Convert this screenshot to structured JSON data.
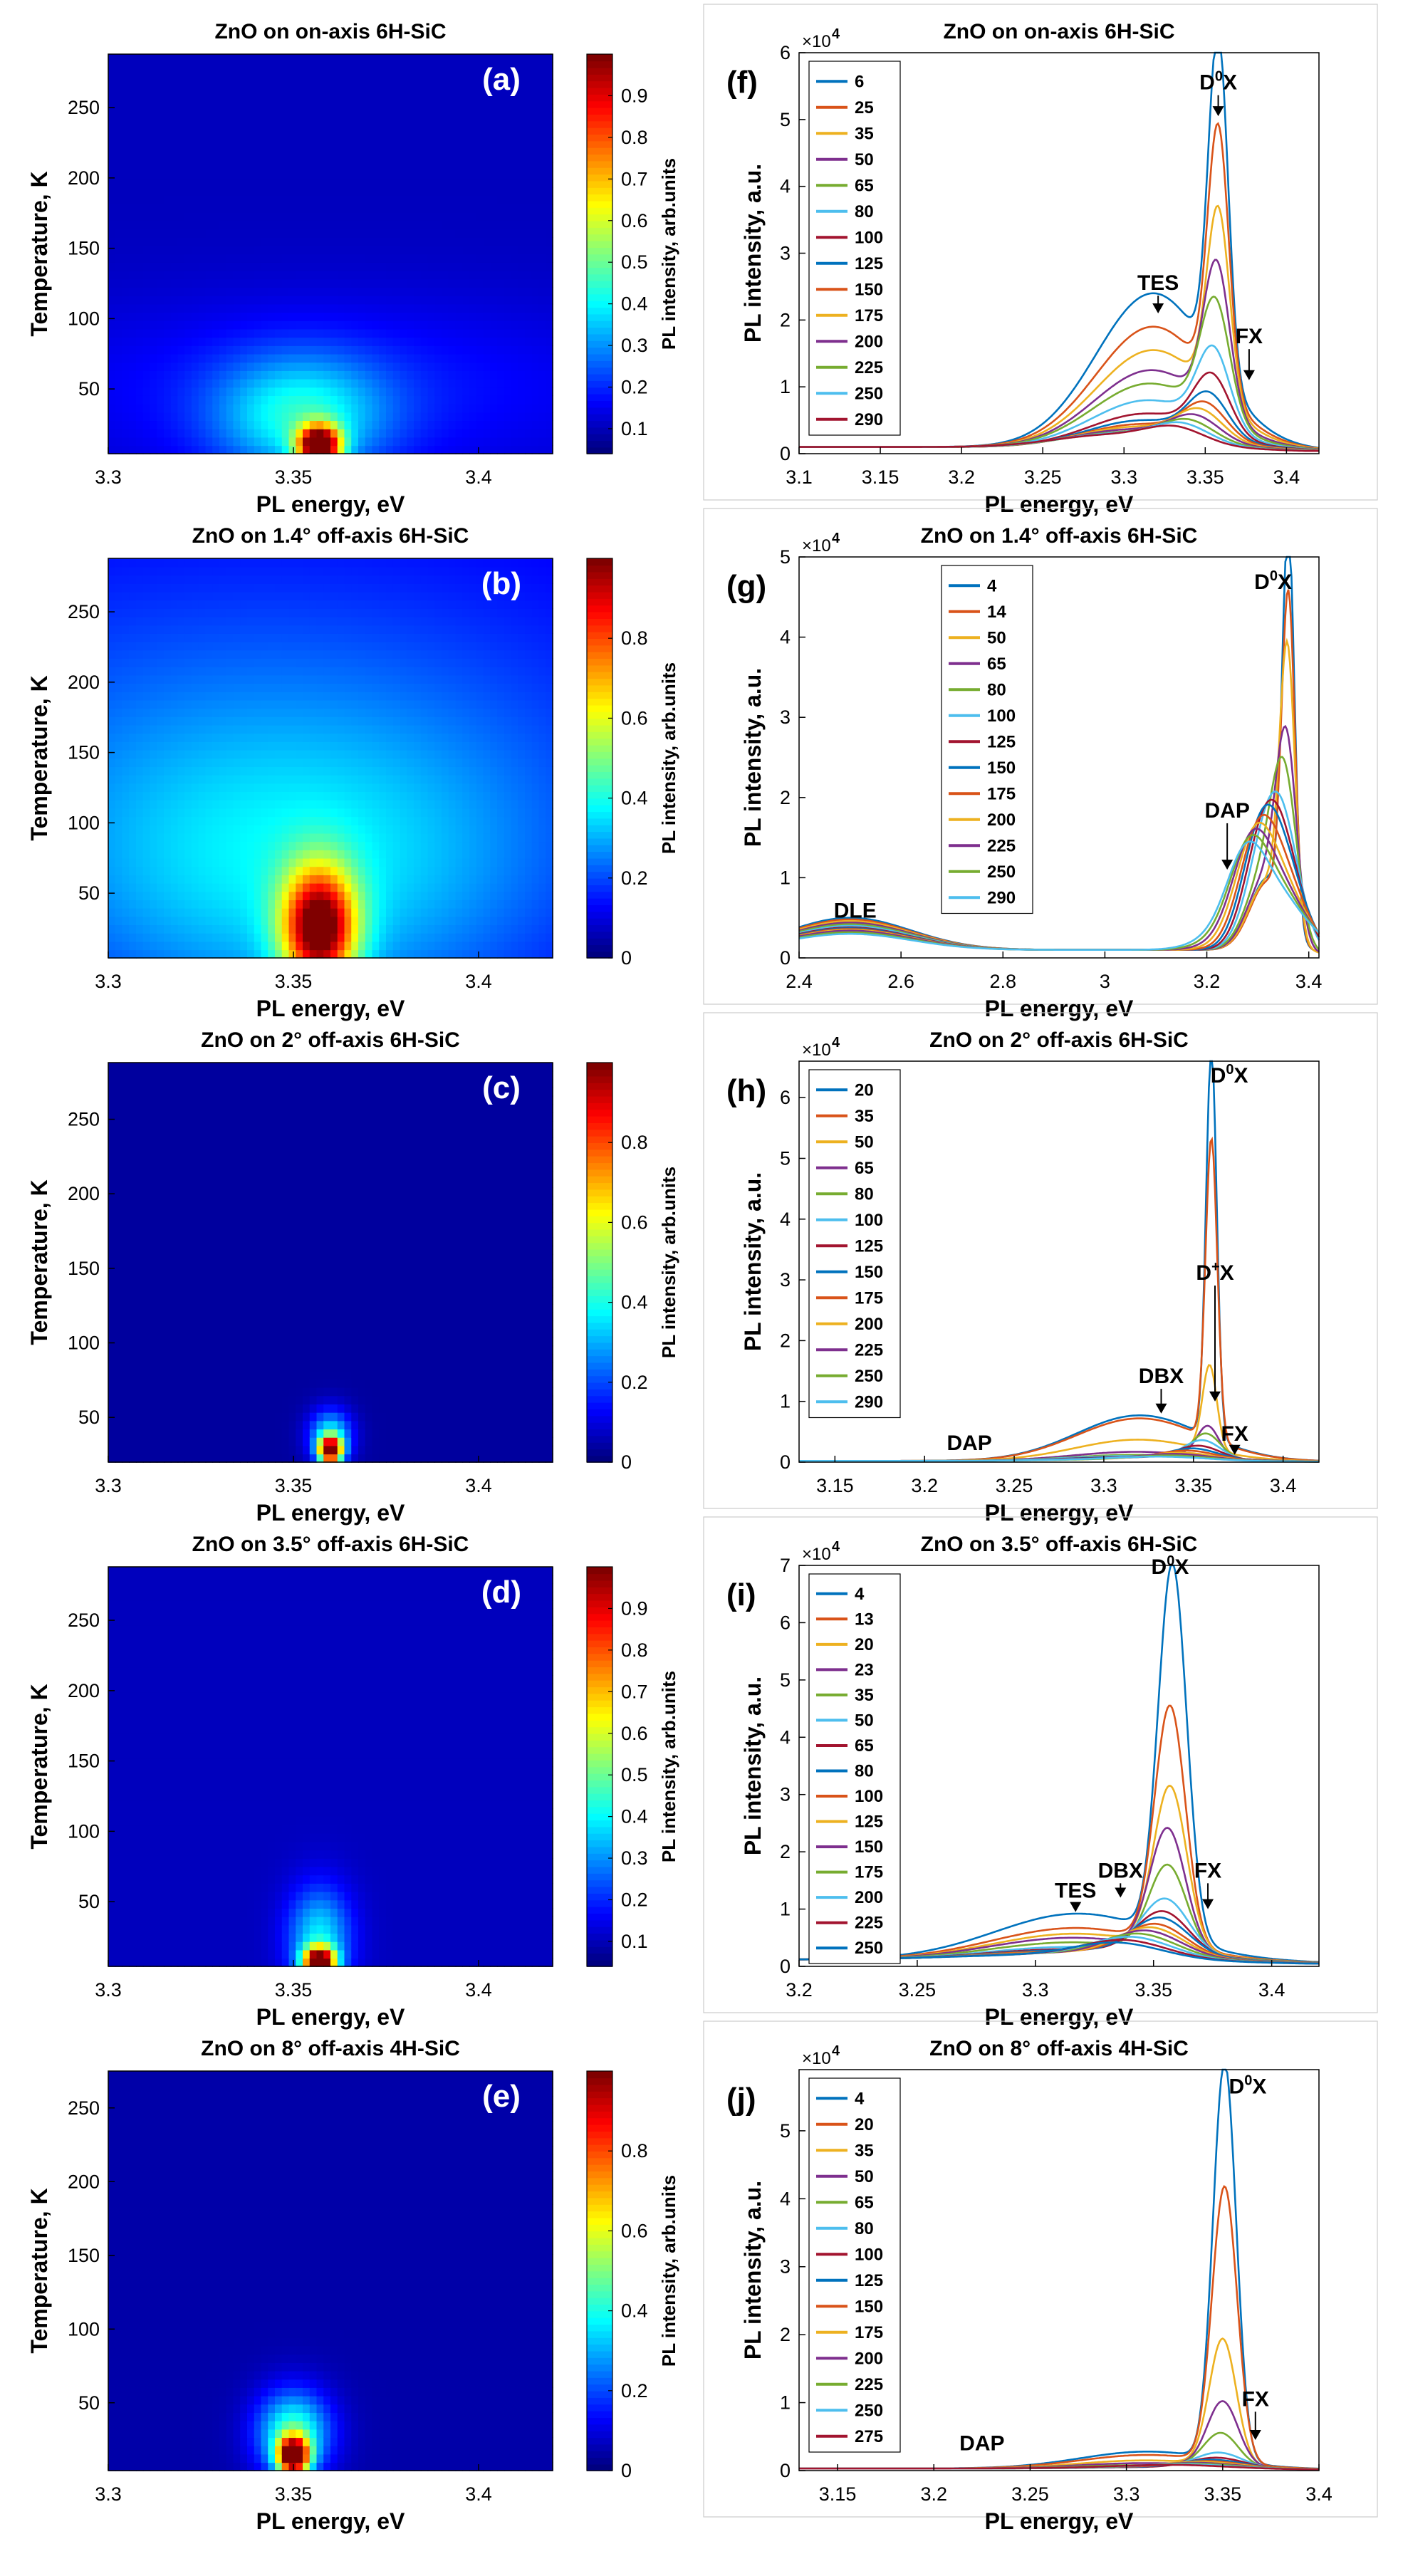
{
  "colors": {
    "series": [
      "#0072BD",
      "#D95319",
      "#EDB120",
      "#7E2F8E",
      "#77AC30",
      "#4DBEEE",
      "#A2142F"
    ]
  },
  "chart_data": [
    {
      "panel": "(a)",
      "type": "heatmap",
      "side": "left",
      "title": "ZnO on on-axis 6H-SiC",
      "xlabel": "PL energy, eV",
      "ylabel": "Temperature, K",
      "colorbar_label": "PL intensity, arb.units",
      "xlim": [
        3.3,
        3.42
      ],
      "ylim": [
        4,
        288
      ],
      "xticks": [
        "3.3",
        "3.35",
        "3.4"
      ],
      "xtick_values": [
        3.3,
        3.35,
        3.4
      ],
      "yticks": [
        "50",
        "100",
        "150",
        "200",
        "250"
      ],
      "ytick_values": [
        50,
        100,
        150,
        200,
        250
      ],
      "cticks": [
        "0.1",
        "0.2",
        "0.3",
        "0.4",
        "0.5",
        "0.6",
        "0.7",
        "0.8",
        "0.9"
      ],
      "ctick_values": [
        0.1,
        0.2,
        0.3,
        0.4,
        0.5,
        0.6,
        0.7,
        0.8,
        0.9
      ],
      "crange": [
        0.04,
        1.0
      ],
      "features": [
        {
          "e": 3.357,
          "t": 10,
          "se": 0.004,
          "st": 10,
          "amp": 0.95
        },
        {
          "e": 3.352,
          "t": 30,
          "se": 0.016,
          "st": 30,
          "amp": 0.28
        },
        {
          "e": 3.36,
          "t": 50,
          "se": 0.06,
          "st": 45,
          "amp": 0.09
        }
      ],
      "base": 0.06
    },
    {
      "panel": "(b)",
      "type": "heatmap",
      "side": "left",
      "title": "ZnO on 1.4° off-axis 6H-SiC",
      "xlabel": "PL energy, eV",
      "ylabel": "Temperature, K",
      "colorbar_label": "PL intensity, arb.units",
      "xlim": [
        3.3,
        3.42
      ],
      "ylim": [
        4,
        288
      ],
      "xticks": [
        "3.3",
        "3.35",
        "3.4"
      ],
      "xtick_values": [
        3.3,
        3.35,
        3.4
      ],
      "yticks": [
        "50",
        "100",
        "150",
        "200",
        "250"
      ],
      "ytick_values": [
        50,
        100,
        150,
        200,
        250
      ],
      "cticks": [
        "0",
        "0.2",
        "0.4",
        "0.6",
        "0.8"
      ],
      "ctick_values": [
        0,
        0.2,
        0.4,
        0.6,
        0.8
      ],
      "crange": [
        0,
        1.0
      ],
      "features": [
        {
          "e": 3.357,
          "t": 25,
          "se": 0.007,
          "st": 30,
          "amp": 0.8
        },
        {
          "e": 3.35,
          "t": 60,
          "se": 0.05,
          "st": 80,
          "amp": 0.22
        },
        {
          "e": 3.34,
          "t": 170,
          "se": 0.09,
          "st": 110,
          "amp": 0.12
        }
      ],
      "base": 0.08
    },
    {
      "panel": "(c)",
      "type": "heatmap",
      "side": "left",
      "title": "ZnO on 2° off-axis 6H-SiC",
      "xlabel": "PL energy, eV",
      "ylabel": "Temperature, K",
      "colorbar_label": "PL intensity, arb.units",
      "xlim": [
        3.3,
        3.42
      ],
      "ylim": [
        20,
        288
      ],
      "xticks": [
        "3.3",
        "3.35",
        "3.4"
      ],
      "xtick_values": [
        3.3,
        3.35,
        3.4
      ],
      "yticks": [
        "50",
        "100",
        "150",
        "200",
        "250"
      ],
      "ytick_values": [
        50,
        100,
        150,
        200,
        250
      ],
      "cticks": [
        "0",
        "0.2",
        "0.4",
        "0.6",
        "0.8"
      ],
      "ctick_values": [
        0,
        0.2,
        0.4,
        0.6,
        0.8
      ],
      "crange": [
        0,
        1.0
      ],
      "features": [
        {
          "e": 3.36,
          "t": 28,
          "se": 0.0022,
          "st": 6,
          "amp": 0.95
        },
        {
          "e": 3.36,
          "t": 38,
          "se": 0.004,
          "st": 12,
          "amp": 0.35
        }
      ],
      "base": 0.03
    },
    {
      "panel": "(d)",
      "type": "heatmap",
      "side": "left",
      "title": "ZnO on 3.5° off-axis 6H-SiC",
      "xlabel": "PL energy, eV",
      "ylabel": "Temperature, K",
      "colorbar_label": "PL intensity, arb.units",
      "xlim": [
        3.3,
        3.42
      ],
      "ylim": [
        4,
        288
      ],
      "xticks": [
        "3.3",
        "3.35",
        "3.4"
      ],
      "xtick_values": [
        3.3,
        3.35,
        3.4
      ],
      "yticks": [
        "50",
        "100",
        "150",
        "200",
        "250"
      ],
      "ytick_values": [
        50,
        100,
        150,
        200,
        250
      ],
      "cticks": [
        "0.1",
        "0.2",
        "0.3",
        "0.4",
        "0.5",
        "0.6",
        "0.7",
        "0.8",
        "0.9"
      ],
      "ctick_values": [
        0.1,
        0.2,
        0.3,
        0.4,
        0.5,
        0.6,
        0.7,
        0.8,
        0.9
      ],
      "crange": [
        0.04,
        1.0
      ],
      "features": [
        {
          "e": 3.357,
          "t": 8,
          "se": 0.003,
          "st": 7,
          "amp": 0.95
        },
        {
          "e": 3.357,
          "t": 25,
          "se": 0.006,
          "st": 25,
          "amp": 0.3
        }
      ],
      "base": 0.06
    },
    {
      "panel": "(e)",
      "type": "heatmap",
      "side": "left",
      "title": "ZnO on 8° off-axis 4H-SiC",
      "xlabel": "PL energy, eV",
      "ylabel": "Temperature, K",
      "colorbar_label": "PL intensity, arb.units",
      "xlim": [
        3.3,
        3.42
      ],
      "ylim": [
        4,
        275
      ],
      "xticks": [
        "3.3",
        "3.35",
        "3.4"
      ],
      "xtick_values": [
        3.3,
        3.35,
        3.4
      ],
      "yticks": [
        "50",
        "100",
        "150",
        "200",
        "250"
      ],
      "ytick_values": [
        50,
        100,
        150,
        200,
        250
      ],
      "cticks": [
        "0",
        "0.2",
        "0.4",
        "0.6",
        "0.8"
      ],
      "ctick_values": [
        0,
        0.2,
        0.4,
        0.6,
        0.8
      ],
      "crange": [
        0,
        1.0
      ],
      "features": [
        {
          "e": 3.35,
          "t": 14,
          "se": 0.003,
          "st": 9,
          "amp": 0.95
        },
        {
          "e": 3.35,
          "t": 30,
          "se": 0.007,
          "st": 20,
          "amp": 0.4
        }
      ],
      "base": 0.04
    },
    {
      "panel": "(f)",
      "type": "line",
      "side": "right",
      "title": "ZnO on on-axis 6H-SiC",
      "xlabel": "PL energy, eV",
      "ylabel": "PL intensity, a.u.",
      "multiplier": "×10",
      "multiplier_exp": "4",
      "xlim": [
        3.1,
        3.42
      ],
      "ylim": [
        0,
        6
      ],
      "xticks": [
        "3.1",
        "3.15",
        "3.2",
        "3.25",
        "3.3",
        "3.35",
        "3.4"
      ],
      "xtick_values": [
        3.1,
        3.15,
        3.2,
        3.25,
        3.3,
        3.35,
        3.4
      ],
      "yticks": [
        "0",
        "1",
        "2",
        "3",
        "4",
        "5",
        "6"
      ],
      "ytick_values": [
        0,
        1,
        2,
        3,
        4,
        5,
        6
      ],
      "legend": [
        "6",
        "25",
        "35",
        "50",
        "65",
        "80",
        "100",
        "125",
        "150",
        "175",
        "200",
        "225",
        "250",
        "290"
      ],
      "peaks": [
        5.05,
        3.9,
        2.85,
        2.2,
        1.75,
        1.15,
        0.85,
        0.62,
        0.5,
        0.42,
        0.35,
        0.3,
        0.26,
        0.22
      ],
      "centers": [
        3.358,
        3.358,
        3.358,
        3.357,
        3.356,
        3.355,
        3.354,
        3.352,
        3.35,
        3.347,
        3.344,
        3.34,
        3.336,
        3.332
      ],
      "widths": [
        0.006,
        0.0065,
        0.007,
        0.008,
        0.009,
        0.01,
        0.011,
        0.012,
        0.013,
        0.014,
        0.015,
        0.016,
        0.017,
        0.018
      ],
      "shoulders": [
        2.3,
        1.8,
        1.45,
        1.15,
        0.95,
        0.7,
        0.5,
        0.4,
        0.34,
        0.3,
        0.26,
        0.22,
        0.2,
        0.18
      ],
      "baseline": 0.1,
      "annotations": [
        {
          "label": "D",
          "sup": "0",
          "tail": "X",
          "x": 3.358,
          "y": 5.45,
          "arrow_to": 5.05
        },
        {
          "label": "TES",
          "sup": "",
          "tail": "",
          "x": 3.321,
          "y": 2.45,
          "arrow_to": 2.1
        },
        {
          "label": "FX",
          "sup": "",
          "tail": "",
          "x": 3.377,
          "y": 1.65,
          "arrow_to": 1.1
        }
      ]
    },
    {
      "panel": "(g)",
      "type": "line",
      "side": "right",
      "title": "ZnO on 1.4° off-axis 6H-SiC",
      "xlabel": "PL energy, eV",
      "ylabel": "PL intensity, a.u.",
      "multiplier": "×10",
      "multiplier_exp": "4",
      "xlim": [
        2.4,
        3.42
      ],
      "ylim": [
        0,
        5
      ],
      "xticks": [
        "2.4",
        "2.6",
        "2.8",
        "3",
        "3.2",
        "3.4"
      ],
      "xtick_values": [
        2.4,
        2.6,
        2.8,
        3.0,
        3.2,
        3.4
      ],
      "yticks": [
        "0",
        "1",
        "2",
        "3",
        "4",
        "5"
      ],
      "ytick_values": [
        0,
        1,
        2,
        3,
        4,
        5
      ],
      "legend": [
        "4",
        "14",
        "50",
        "65",
        "80",
        "100",
        "125",
        "150",
        "175",
        "200",
        "225",
        "250",
        "290"
      ],
      "peaks": [
        4.85,
        4.05,
        3.4,
        2.3,
        1.9,
        1.4,
        1.3,
        1.25,
        1.1,
        1.0,
        0.95,
        0.9,
        0.85
      ],
      "centers": [
        3.36,
        3.36,
        3.358,
        3.356,
        3.352,
        3.348,
        3.344,
        3.34,
        3.336,
        3.33,
        3.325,
        3.32,
        3.315
      ],
      "widths": [
        0.012,
        0.013,
        0.015,
        0.02,
        0.025,
        0.035,
        0.04,
        0.045,
        0.05,
        0.055,
        0.06,
        0.065,
        0.07
      ],
      "shoulders": [
        0.9,
        0.85,
        0.85,
        0.9,
        0.9,
        0.9,
        0.85,
        0.8,
        0.78,
        0.75,
        0.7,
        0.65,
        0.6
      ],
      "dle": [
        0.4,
        0.38,
        0.36,
        0.34,
        0.32,
        0.3,
        0.28,
        0.27,
        0.26,
        0.25,
        0.24,
        0.22,
        0.2
      ],
      "baseline": 0.1,
      "annotations": [
        {
          "label": "D",
          "sup": "0",
          "tail": "X",
          "x": 3.33,
          "y": 4.6,
          "arrow_to": null
        },
        {
          "label": "DAP",
          "sup": "",
          "tail": "",
          "x": 3.24,
          "y": 1.75,
          "arrow_to": 1.1
        },
        {
          "label": "DLE",
          "sup": "",
          "tail": "",
          "x": 2.51,
          "y": 0.5,
          "arrow_to": null
        }
      ]
    },
    {
      "panel": "(h)",
      "type": "line",
      "side": "right",
      "title": "ZnO on 2° off-axis 6H-SiC",
      "xlabel": "PL energy, eV",
      "ylabel": "PL intensity, a.u.",
      "multiplier": "×10",
      "multiplier_exp": "4",
      "xlim": [
        3.13,
        3.42
      ],
      "ylim": [
        0,
        6.6
      ],
      "xticks": [
        "3.15",
        "3.2",
        "3.25",
        "3.3",
        "3.35",
        "3.4"
      ],
      "xtick_values": [
        3.15,
        3.2,
        3.25,
        3.3,
        3.35,
        3.4
      ],
      "yticks": [
        "0",
        "1",
        "2",
        "3",
        "4",
        "5",
        "6"
      ],
      "ytick_values": [
        0,
        1,
        2,
        3,
        4,
        5,
        6
      ],
      "legend": [
        "20",
        "35",
        "50",
        "65",
        "80",
        "100",
        "125",
        "150",
        "175",
        "200",
        "225",
        "250",
        "290"
      ],
      "peaks": [
        6.4,
        4.95,
        1.4,
        0.5,
        0.4,
        0.3,
        0.22,
        0.18,
        0.15,
        0.12,
        0.1,
        0.08,
        0.06
      ],
      "centers": [
        3.36,
        3.36,
        3.359,
        3.358,
        3.357,
        3.355,
        3.353,
        3.35,
        3.347,
        3.344,
        3.341,
        3.338,
        3.334
      ],
      "widths": [
        0.003,
        0.0033,
        0.004,
        0.006,
        0.008,
        0.01,
        0.012,
        0.014,
        0.016,
        0.018,
        0.02,
        0.022,
        0.025
      ],
      "shoulders": [
        0.75,
        0.7,
        0.35,
        0.15,
        0.1,
        0.08,
        0.06,
        0.05,
        0.04,
        0.03,
        0.03,
        0.02,
        0.02
      ],
      "baseline": 0.02,
      "annotations": [
        {
          "label": "D",
          "sup": "0",
          "tail": "X",
          "x": 3.37,
          "y": 6.25,
          "arrow_to": null
        },
        {
          "label": "D",
          "sup": "+",
          "tail": "X",
          "x": 3.362,
          "y": 3.0,
          "arrow_to": 1.0
        },
        {
          "label": "DBX",
          "sup": "",
          "tail": "",
          "x": 3.332,
          "y": 1.3,
          "arrow_to": 0.8
        },
        {
          "label": "FX",
          "sup": "",
          "tail": "",
          "x": 3.373,
          "y": 0.35,
          "arrow_to": 0.12
        },
        {
          "label": "DAP",
          "sup": "",
          "tail": "",
          "x": 3.225,
          "y": 0.2,
          "arrow_to": null
        }
      ]
    },
    {
      "panel": "(i)",
      "type": "line",
      "side": "right",
      "title": "ZnO on 3.5° off-axis 6H-SiC",
      "xlabel": "PL energy, eV",
      "ylabel": "PL intensity, a.u.",
      "multiplier": "×10",
      "multiplier_exp": "4",
      "xlim": [
        3.2,
        3.42
      ],
      "ylim": [
        0,
        7
      ],
      "xticks": [
        "3.2",
        "3.25",
        "3.3",
        "3.35",
        "3.4"
      ],
      "xtick_values": [
        3.2,
        3.25,
        3.3,
        3.35,
        3.4
      ],
      "yticks": [
        "0",
        "1",
        "2",
        "3",
        "4",
        "5",
        "6",
        "7"
      ],
      "ytick_values": [
        0,
        1,
        2,
        3,
        4,
        5,
        6,
        7
      ],
      "legend": [
        "4",
        "13",
        "20",
        "23",
        "35",
        "50",
        "65",
        "80",
        "100",
        "125",
        "150",
        "175",
        "200",
        "225",
        "250"
      ],
      "peaks": [
        6.5,
        4.15,
        2.8,
        2.1,
        1.5,
        0.95,
        0.75,
        0.65,
        0.55,
        0.5,
        0.45,
        0.4,
        0.35,
        0.3,
        0.26
      ],
      "centers": [
        3.358,
        3.357,
        3.357,
        3.356,
        3.356,
        3.355,
        3.354,
        3.353,
        3.351,
        3.349,
        3.347,
        3.344,
        3.341,
        3.338,
        3.335
      ],
      "widths": [
        0.006,
        0.0065,
        0.007,
        0.0075,
        0.008,
        0.01,
        0.011,
        0.012,
        0.013,
        0.014,
        0.015,
        0.016,
        0.017,
        0.018,
        0.019
      ],
      "shoulders": [
        0.8,
        0.55,
        0.45,
        0.38,
        0.3,
        0.22,
        0.18,
        0.16,
        0.14,
        0.12,
        0.11,
        0.1,
        0.09,
        0.08,
        0.07
      ],
      "baseline": 0.12,
      "annotations": [
        {
          "label": "D",
          "sup": "0",
          "tail": "X",
          "x": 3.357,
          "y": 6.85,
          "arrow_to": null
        },
        {
          "label": "TES",
          "sup": "",
          "tail": "",
          "x": 3.317,
          "y": 1.2,
          "arrow_to": 0.95
        },
        {
          "label": "DBX",
          "sup": "",
          "tail": "",
          "x": 3.336,
          "y": 1.55,
          "arrow_to": 1.2
        },
        {
          "label": "FX",
          "sup": "",
          "tail": "",
          "x": 3.373,
          "y": 1.55,
          "arrow_to": 1.0
        }
      ]
    },
    {
      "panel": "(j)",
      "type": "line",
      "side": "right",
      "title": "ZnO on 8° off-axis 4H-SiC",
      "xlabel": "PL energy, eV",
      "ylabel": "PL intensity, a.u.",
      "multiplier": "×10",
      "multiplier_exp": "4",
      "xlim": [
        3.13,
        3.4
      ],
      "ylim": [
        0,
        5.9
      ],
      "xticks": [
        "3.15",
        "3.2",
        "3.25",
        "3.3",
        "3.35",
        "3.4"
      ],
      "xtick_values": [
        3.15,
        3.2,
        3.25,
        3.3,
        3.35,
        3.4
      ],
      "yticks": [
        "0",
        "1",
        "2",
        "3",
        "4",
        "5"
      ],
      "ytick_values": [
        0,
        1,
        2,
        3,
        4,
        5
      ],
      "legend": [
        "4",
        "20",
        "35",
        "50",
        "65",
        "80",
        "100",
        "125",
        "150",
        "175",
        "200",
        "225",
        "250",
        "275"
      ],
      "peaks": [
        5.85,
        4.05,
        1.85,
        0.95,
        0.5,
        0.22,
        0.15,
        0.12,
        0.1,
        0.09,
        0.08,
        0.07,
        0.06,
        0.05
      ],
      "centers": [
        3.351,
        3.351,
        3.35,
        3.35,
        3.349,
        3.348,
        3.347,
        3.345,
        3.343,
        3.34,
        3.337,
        3.334,
        3.33,
        3.326
      ],
      "widths": [
        0.006,
        0.0065,
        0.007,
        0.008,
        0.009,
        0.012,
        0.014,
        0.016,
        0.018,
        0.02,
        0.022,
        0.024,
        0.026,
        0.028
      ],
      "shoulders": [
        0.25,
        0.2,
        0.12,
        0.08,
        0.05,
        0.03,
        0.02,
        0.02,
        0.02,
        0.02,
        0.01,
        0.01,
        0.01,
        0.01
      ],
      "baseline": 0.03,
      "annotations": [
        {
          "label": "D",
          "sup": "0",
          "tail": "X",
          "x": 3.363,
          "y": 5.55,
          "arrow_to": null
        },
        {
          "label": "FX",
          "sup": "",
          "tail": "",
          "x": 3.367,
          "y": 0.95,
          "arrow_to": 0.45
        },
        {
          "label": "DAP",
          "sup": "",
          "tail": "",
          "x": 3.225,
          "y": 0.3,
          "arrow_to": null
        }
      ]
    }
  ]
}
